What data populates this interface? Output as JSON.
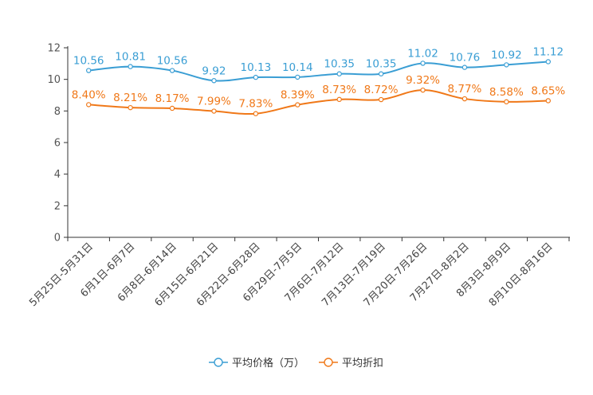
{
  "chart_data": {
    "type": "line",
    "title": "",
    "xlabel": "",
    "ylabel": "",
    "ylim": [
      0,
      12
    ],
    "yticks": [
      0,
      2,
      4,
      6,
      8,
      10,
      12
    ],
    "grid": false,
    "legend_position": "bottom-center",
    "categories": [
      "5月25日-5月31日",
      "6月1日-6月7日",
      "6月8日-6月14日",
      "6月15日-6月21日",
      "6月22日-6月28日",
      "6月29日-7月5日",
      "7月6日-7月12日",
      "7月13日-7月19日",
      "7月20日-7月26日",
      "7月27日-8月2日",
      "8月3日-8月9日",
      "8月10日-8月16日"
    ],
    "series": [
      {
        "name": "平均价格（万）",
        "color": "#3a9ed4",
        "values": [
          10.56,
          10.81,
          10.56,
          9.92,
          10.13,
          10.14,
          10.35,
          10.35,
          11.02,
          10.76,
          10.92,
          11.12
        ],
        "labels": [
          "10.56",
          "10.81",
          "10.56",
          "9.92",
          "10.13",
          "10.14",
          "10.35",
          "10.35",
          "11.02",
          "10.76",
          "10.92",
          "11.12"
        ]
      },
      {
        "name": "平均折扣",
        "color": "#f07818",
        "values": [
          8.4,
          8.21,
          8.17,
          7.99,
          7.83,
          8.39,
          8.73,
          8.72,
          9.32,
          8.77,
          8.58,
          8.65
        ],
        "labels": [
          "8.40%",
          "8.21%",
          "8.17%",
          "7.99%",
          "7.83%",
          "8.39%",
          "8.73%",
          "8.72%",
          "9.32%",
          "8.77%",
          "8.58%",
          "8.65%"
        ]
      }
    ]
  }
}
